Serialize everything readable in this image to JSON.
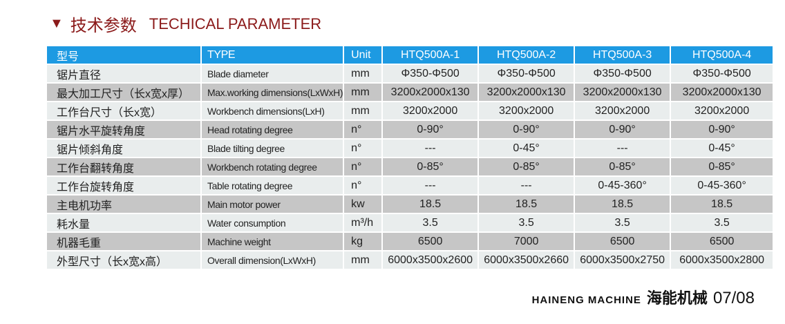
{
  "title": {
    "zh": "技术参数",
    "en": "TECHICAL PARAMETER"
  },
  "table": {
    "header": [
      "型号",
      "TYPE",
      "Unit",
      "HTQ500A-1",
      "HTQ500A-2",
      "HTQ500A-3",
      "HTQ500A-4"
    ],
    "rows": [
      [
        "锯片直径",
        "Blade diameter",
        "mm",
        "Φ350-Φ500",
        "Φ350-Φ500",
        "Φ350-Φ500",
        "Φ350-Φ500"
      ],
      [
        "最大加工尺寸（长x宽x厚）",
        "Max.working dimensions(LxWxH)",
        "mm",
        "3200x2000x130",
        "3200x2000x130",
        "3200x2000x130",
        "3200x2000x130"
      ],
      [
        "工作台尺寸（长x宽）",
        "Workbench dimensions(LxH)",
        "mm",
        "3200x2000",
        "3200x2000",
        "3200x2000",
        "3200x2000"
      ],
      [
        "锯片水平旋转角度",
        "Head rotating degree",
        "n°",
        "0-90°",
        "0-90°",
        "0-90°",
        "0-90°"
      ],
      [
        "锯片倾斜角度",
        "Blade tilting degree",
        "n°",
        "---",
        "0-45°",
        "---",
        "0-45°"
      ],
      [
        "工作台翻转角度",
        "Workbench rotating degree",
        "n°",
        "0-85°",
        "0-85°",
        "0-85°",
        "0-85°"
      ],
      [
        "工作台旋转角度",
        "Table rotating degree",
        "n°",
        "---",
        "---",
        "0-45-360°",
        "0-45-360°"
      ],
      [
        "主电机功率",
        "Main motor power",
        "kw",
        "18.5",
        "18.5",
        "18.5",
        "18.5"
      ],
      [
        "耗水量",
        "Water consumption",
        "m³/h",
        "3.5",
        "3.5",
        "3.5",
        "3.5"
      ],
      [
        "机器毛重",
        "Machine weight",
        "kg",
        "6500",
        "7000",
        "6500",
        "6500"
      ],
      [
        "外型尺寸（长x宽x高）",
        "Overall dimension(LxWxH)",
        "mm",
        "6000x3500x2600",
        "6000x3500x2660",
        "6000x3500x2750",
        "6000x3500x2800"
      ]
    ]
  },
  "footer": {
    "brand": "HAINENG MACHINE",
    "brand_zh": "海能机械",
    "page": "07/08"
  },
  "colors": {
    "header": "#1d9ae2",
    "title": "#8b1a1a",
    "row_light": "#e9eded",
    "row_dark": "#c6c6c6"
  }
}
